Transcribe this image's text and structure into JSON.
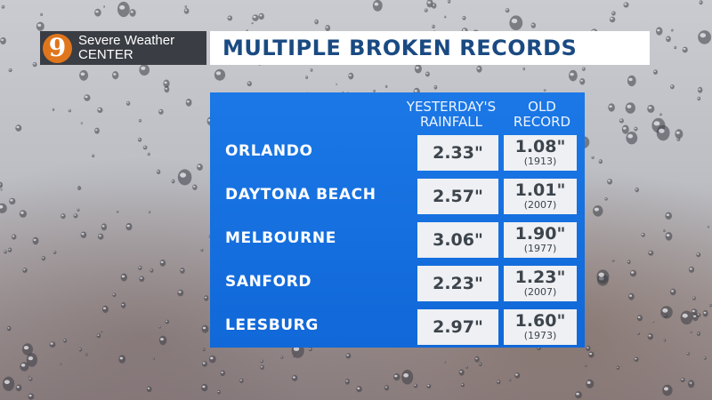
{
  "logo": {
    "number": "9",
    "line1": "Severe Weather",
    "line2": "CENTER"
  },
  "title": "MULTIPLE BROKEN RECORDS",
  "headers": {
    "rainfall_line1": "YESTERDAY'S",
    "rainfall_line2": "RAINFALL",
    "old_line1": "OLD",
    "old_line2": "RECORD"
  },
  "rows": [
    {
      "city": "ORLANDO",
      "rainfall": "2.33\"",
      "old_record": "1.08\"",
      "old_year": "(1913)"
    },
    {
      "city": "DAYTONA BEACH",
      "rainfall": "2.57\"",
      "old_record": "1.01\"",
      "old_year": "(2007)"
    },
    {
      "city": "MELBOURNE",
      "rainfall": "3.06\"",
      "old_record": "1.90\"",
      "old_year": "(1977)"
    },
    {
      "city": "SANFORD",
      "rainfall": "2.23\"",
      "old_record": "1.23\"",
      "old_year": "(2007)"
    },
    {
      "city": "LEESBURG",
      "rainfall": "2.97\"",
      "old_record": "1.60\"",
      "old_year": "(1973)"
    }
  ],
  "colors": {
    "panel": "#1168d8",
    "title_text": "#1a4a82",
    "logo_badge": "#e0761c",
    "logo_box": "#3a3d43"
  }
}
